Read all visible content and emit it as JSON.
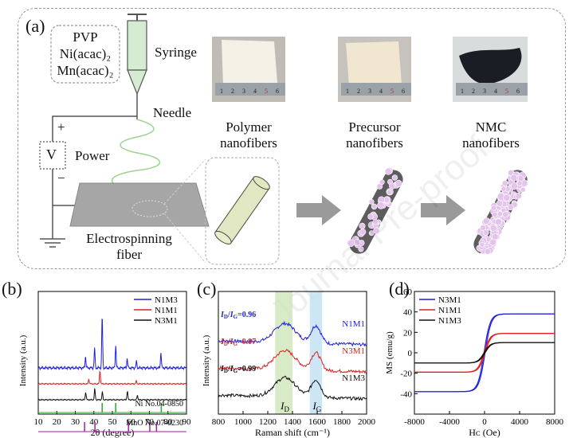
{
  "figure": {
    "a": {
      "letter": "(a)",
      "precursor_lines": [
        "PVP",
        "Ni(acac)₂",
        "Mn(acac)₂"
      ],
      "syringe": "Syringe",
      "needle": "Needle",
      "power": "Power",
      "v_label": "V",
      "plus": "+",
      "minus": "−",
      "collector_lines": [
        "Electrospinning",
        "fiber"
      ],
      "stages": [
        {
          "lines": [
            "Polymer",
            "nanofibers"
          ]
        },
        {
          "lines": [
            "Precursor",
            "nanofibers"
          ]
        },
        {
          "lines": [
            "NMC",
            "nanofibers"
          ]
        }
      ],
      "ruler_ticks": [
        "1",
        "2",
        "3",
        "4",
        "5",
        "6"
      ],
      "watermark": "Journal Pre-proof"
    },
    "b": {
      "letter": "(b)"
    },
    "c": {
      "letter": "(c)",
      "id_label": "I",
      "ig_label": "I"
    },
    "d": {
      "letter": "(d)"
    }
  },
  "chart_data": [
    {
      "panel": "b",
      "type": "line",
      "xlabel": "2θ (degree)",
      "ylabel": "Intensity (a.u.)",
      "xlim": [
        10,
        90
      ],
      "xticks": [
        10,
        20,
        30,
        40,
        50,
        60,
        70,
        80,
        90
      ],
      "legend": [
        "N1M3",
        "N1M1",
        "N3M1"
      ],
      "legend_position": "top-right",
      "series": [
        {
          "name": "N1M3",
          "color": "#1f1fe0",
          "peaks": [
            [
              35.5,
              0.22
            ],
            [
              40.4,
              0.38
            ],
            [
              44.5,
              1.0
            ],
            [
              51.8,
              0.42
            ],
            [
              58.0,
              0.18
            ],
            [
              63.0,
              0.12
            ],
            [
              76.2,
              0.3
            ]
          ]
        },
        {
          "name": "N1M1",
          "color": "#e01f1f",
          "peaks": [
            [
              37.3,
              0.2
            ],
            [
              43.3,
              0.55
            ],
            [
              62.9,
              0.12
            ]
          ]
        },
        {
          "name": "N3M1",
          "color": "#111111",
          "peaks": [
            [
              35.6,
              0.35
            ],
            [
              40.5,
              0.5
            ],
            [
              44.6,
              0.35
            ],
            [
              58.1,
              0.4
            ],
            [
              63.5,
              0.2
            ]
          ]
        }
      ],
      "references": [
        {
          "label": "Ni No.04-0850",
          "color": "#2aaa2a",
          "lines": [
            44.5,
            51.8,
            76.4
          ]
        },
        {
          "label": "MnO No.07-0230",
          "color": "#a020a0",
          "lines": [
            35.0,
            40.6,
            58.7,
            70.2,
            73.8
          ]
        }
      ]
    },
    {
      "panel": "c",
      "type": "line",
      "xlabel": "Raman shift (cm⁻¹)",
      "ylabel": "Intensity (a.u.)",
      "xlim": [
        800,
        2000
      ],
      "xticks": [
        800,
        1000,
        1200,
        1400,
        1600,
        1800,
        2000
      ],
      "bands": [
        {
          "label": "D",
          "range": [
            1260,
            1400
          ],
          "color": "#cfe6b8"
        },
        {
          "label": "G",
          "range": [
            1540,
            1640
          ],
          "color": "#bfe0f2"
        }
      ],
      "series": [
        {
          "name": "N1M1",
          "color": "#1f1fe0",
          "ratio_text": "0.96"
        },
        {
          "name": "N3M1",
          "color": "#e01f1f",
          "ratio_text": "0.97"
        },
        {
          "name": "N1M3",
          "color": "#111111",
          "ratio_text": "0.99"
        }
      ]
    },
    {
      "panel": "d",
      "type": "line",
      "xlabel": "Hᴄ (Oe)",
      "ylabel": "MS (emu/g)",
      "xlim": [
        -8000,
        8000
      ],
      "ylim": [
        -60,
        60
      ],
      "xticks": [
        -8000,
        -4000,
        0,
        4000,
        8000
      ],
      "yticks": [
        -40,
        -20,
        0,
        20,
        40,
        60
      ],
      "legend": [
        "N3M1",
        "N1M1",
        "N1M3"
      ],
      "legend_position": "top-left",
      "series": [
        {
          "name": "N3M1",
          "color": "#1f1fe0",
          "ms": 38
        },
        {
          "name": "N1M1",
          "color": "#e01f1f",
          "ms": 19
        },
        {
          "name": "N1M3",
          "color": "#111111",
          "ms": 10
        }
      ]
    }
  ]
}
